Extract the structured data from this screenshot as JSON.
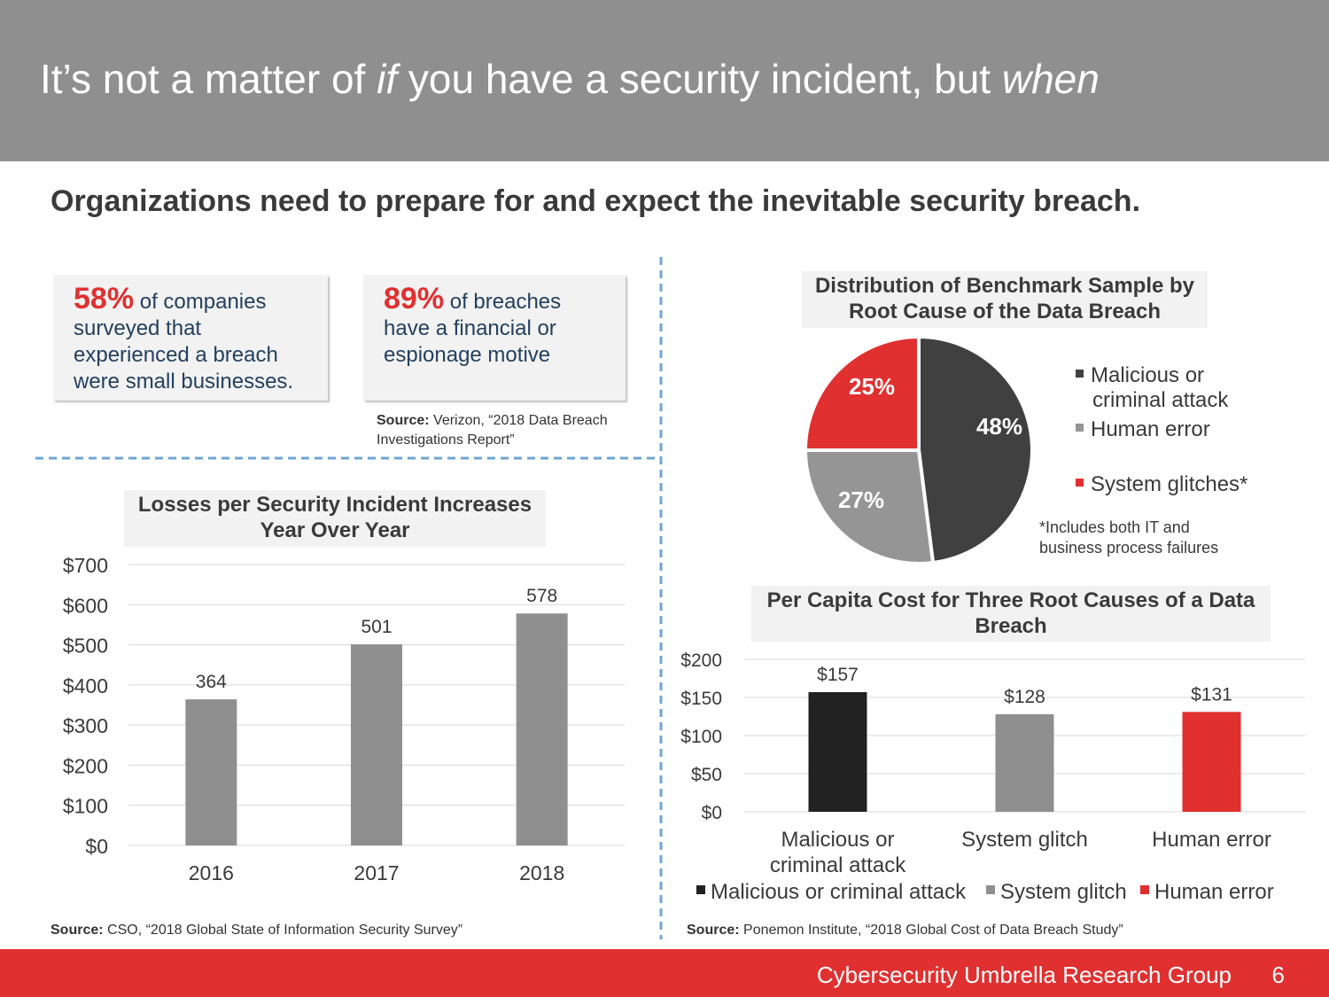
{
  "header": {
    "title_part1": "It’s not a matter of ",
    "title_em1": "if",
    "title_part2": " you have a security incident, but ",
    "title_em2": "when"
  },
  "subtitle": "Organizations need to prepare for and expect the inevitable security breach.",
  "stats": [
    {
      "big": "58%",
      "line1": " of companies",
      "rest": [
        "surveyed that",
        "experienced a breach",
        "were small businesses."
      ]
    },
    {
      "big": "89%",
      "line1": " of breaches",
      "rest": [
        "have a financial or",
        "espionage motive"
      ]
    }
  ],
  "source_verizon": {
    "label": "Source:",
    "text": " Verizon, “2018 Data Breach",
    "text2": "Investigations Report”"
  },
  "source_cso": {
    "label": "Source:",
    "text": " CSO, “2018 Global State of Information Security Survey”"
  },
  "source_ponemon": {
    "label": "Source:",
    "text": " Ponemon Institute, “2018 Global Cost of Data Breach Study”"
  },
  "pie_note": {
    "line1": "*Includes both IT and",
    "line2": "business process failures"
  },
  "footer": {
    "text": "Cybersecurity Umbrella Research Group",
    "page": "6"
  },
  "colors": {
    "red": "#e03030",
    "dark": "#404040",
    "black": "#222222",
    "gray": "#8f8f8f",
    "pie_gray": "#959595"
  },
  "chart_data": [
    {
      "type": "bar",
      "title_lines": [
        "Losses per Security Incident Increases",
        "Year Over Year"
      ],
      "categories": [
        "2016",
        "2017",
        "2018"
      ],
      "values": [
        364,
        501,
        578
      ],
      "data_labels": [
        "364",
        "501",
        "578"
      ],
      "ylim": [
        0,
        700
      ],
      "yticks": [
        "$0",
        "$100",
        "$200",
        "$300",
        "$400",
        "$500",
        "$600",
        "$700"
      ],
      "grid": true,
      "colors": [
        "#8f8f8f",
        "#8f8f8f",
        "#8f8f8f"
      ]
    },
    {
      "type": "pie",
      "title_lines": [
        "Distribution of Benchmark Sample by",
        "Root Cause of the Data Breach"
      ],
      "labels": [
        "Malicious or criminal attack",
        "Human error",
        "System glitches*"
      ],
      "legend_lines": [
        [
          "Malicious or",
          "criminal attack"
        ],
        [
          "Human error"
        ],
        [
          "System glitches*"
        ]
      ],
      "values": [
        48,
        27,
        25
      ],
      "data_labels": [
        "48%",
        "27%",
        "25%"
      ],
      "colors": [
        "#404040",
        "#959595",
        "#e03030"
      ],
      "legend": "right"
    },
    {
      "type": "bar",
      "title_lines": [
        "Per Capita Cost for Three Root Causes of a Data",
        "Breach"
      ],
      "categories": [
        [
          "Malicious or",
          "criminal attack"
        ],
        [
          "System glitch"
        ],
        [
          "Human error"
        ]
      ],
      "values": [
        157,
        128,
        131
      ],
      "data_labels": [
        "$157",
        "$128",
        "$131"
      ],
      "ylim": [
        0,
        200
      ],
      "yticks": [
        "$0",
        "$50",
        "$100",
        "$150",
        "$200"
      ],
      "grid": true,
      "colors": [
        "#222222",
        "#8f8f8f",
        "#e03030"
      ],
      "legend": "bottom",
      "legend_labels": [
        "Malicious or criminal attack",
        "System glitch",
        "Human error"
      ]
    }
  ]
}
